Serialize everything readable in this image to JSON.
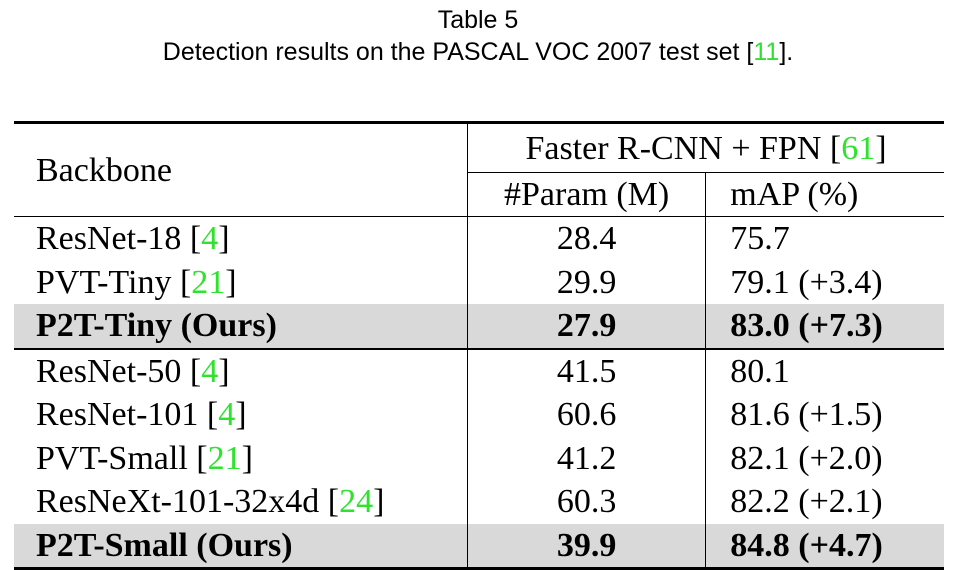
{
  "header": {
    "title": "Table 5",
    "caption": [
      "Detection results on the PASCAL VOC 2007 test set [",
      "11",
      "]."
    ]
  },
  "table": {
    "columns": {
      "backbone": "Backbone",
      "group": [
        "Faster R-CNN + FPN [",
        "61",
        "]"
      ],
      "params": "#Param (M)",
      "map": "mAP (%)"
    },
    "groups": [
      {
        "rows": [
          {
            "backbone": [
              "ResNet-18 [",
              "4",
              "]"
            ],
            "params": "28.4",
            "map": "75.7"
          },
          {
            "backbone": [
              "PVT-Tiny [",
              "21",
              "]"
            ],
            "params": "29.9",
            "map": "79.1 (+3.4)"
          },
          {
            "backbone": [
              "P2T-Tiny (Ours)"
            ],
            "params": "27.9",
            "map": "83.0 (+7.3)",
            "highlight": true
          }
        ]
      },
      {
        "rows": [
          {
            "backbone": [
              "ResNet-50 [",
              "4",
              "]"
            ],
            "params": "41.5",
            "map": "80.1"
          },
          {
            "backbone": [
              "ResNet-101 [",
              "4",
              "]"
            ],
            "params": "60.6",
            "map": "81.6 (+1.5)"
          },
          {
            "backbone": [
              "PVT-Small [",
              "21",
              "]"
            ],
            "params": "41.2",
            "map": "82.1 (+2.0)"
          },
          {
            "backbone": [
              "ResNeXt-101-32x4d [",
              "24",
              "]"
            ],
            "params": "60.3",
            "map": "82.2 (+2.1)"
          },
          {
            "backbone": [
              "P2T-Small (Ours)"
            ],
            "params": "39.9",
            "map": "84.8 (+4.7)",
            "highlight": true
          }
        ]
      }
    ]
  }
}
